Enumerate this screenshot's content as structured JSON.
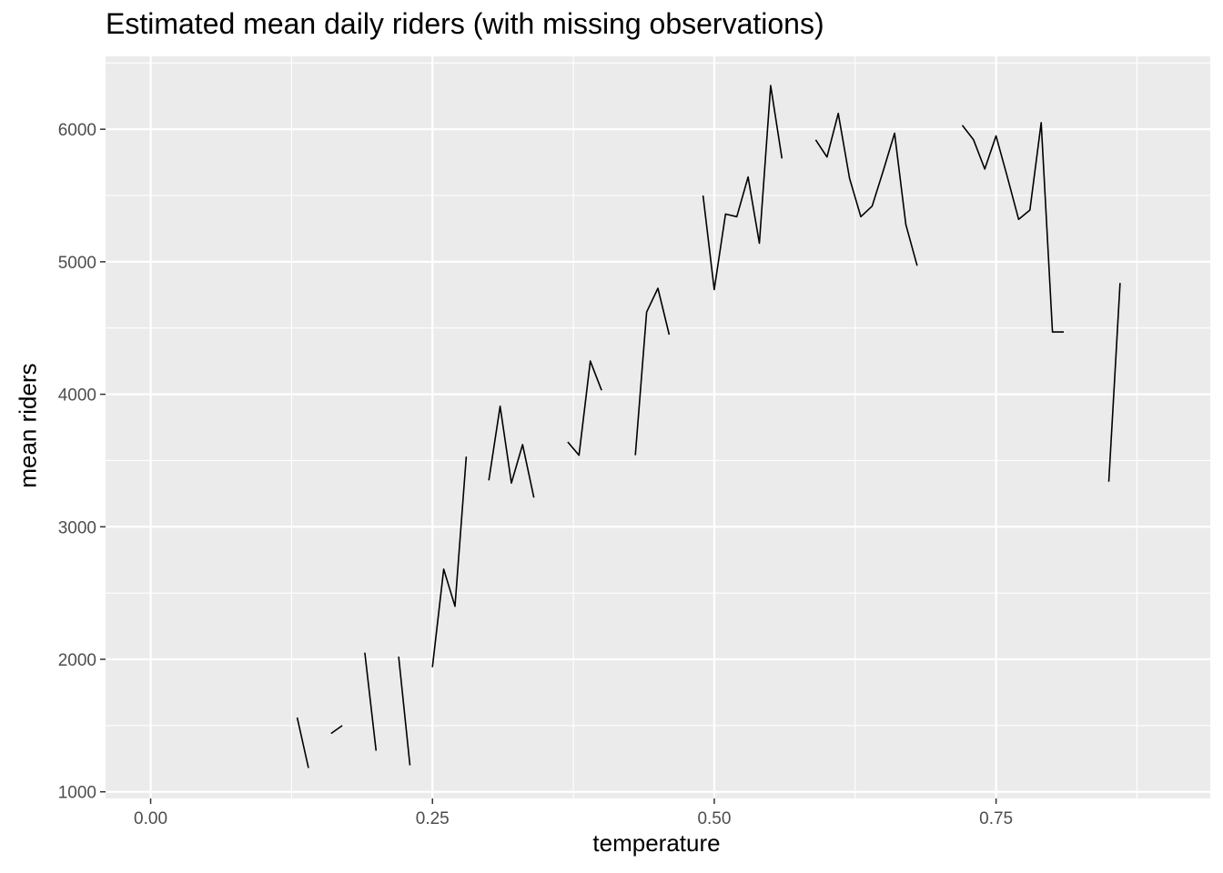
{
  "chart_data": {
    "type": "line",
    "title": "Estimated mean daily riders (with missing observations)",
    "xlabel": "temperature",
    "ylabel": "mean riders",
    "xlim": [
      -0.04,
      0.94
    ],
    "ylim": [
      950,
      6550
    ],
    "x_ticks": [
      0.0,
      0.25,
      0.5,
      0.75
    ],
    "x_tick_labels": [
      "0.00",
      "0.25",
      "0.50",
      "0.75"
    ],
    "x_minor_ticks": [
      0.125,
      0.375,
      0.625,
      0.875
    ],
    "y_ticks": [
      1000,
      2000,
      3000,
      4000,
      5000,
      6000
    ],
    "y_tick_labels": [
      "1000",
      "2000",
      "3000",
      "4000",
      "5000",
      "6000"
    ],
    "y_minor_ticks": [
      1500,
      2500,
      3500,
      4500,
      5500,
      6500
    ],
    "grid": true,
    "colors": {
      "panel": "#ebebeb",
      "grid": "#ffffff",
      "line": "#000000",
      "tick": "#4d4d4d"
    },
    "segments": [
      [
        [
          0.13,
          1560
        ],
        [
          0.14,
          1180
        ]
      ],
      [
        [
          0.16,
          1440
        ],
        [
          0.17,
          1500
        ]
      ],
      [
        [
          0.19,
          2050
        ],
        [
          0.2,
          1310
        ]
      ],
      [
        [
          0.22,
          2020
        ],
        [
          0.23,
          1200
        ]
      ],
      [
        [
          0.25,
          1940
        ],
        [
          0.26,
          2680
        ],
        [
          0.27,
          2400
        ],
        [
          0.28,
          3530
        ]
      ],
      [
        [
          0.3,
          3350
        ],
        [
          0.31,
          3910
        ],
        [
          0.32,
          3330
        ],
        [
          0.33,
          3620
        ],
        [
          0.34,
          3220
        ]
      ],
      [
        [
          0.37,
          3640
        ],
        [
          0.38,
          3540
        ],
        [
          0.39,
          4250
        ],
        [
          0.4,
          4030
        ]
      ],
      [
        [
          0.43,
          3540
        ],
        [
          0.44,
          4620
        ],
        [
          0.45,
          4800
        ],
        [
          0.46,
          4450
        ]
      ],
      [
        [
          0.49,
          5500
        ],
        [
          0.5,
          4790
        ],
        [
          0.51,
          5360
        ],
        [
          0.52,
          5340
        ],
        [
          0.53,
          5640
        ],
        [
          0.54,
          5140
        ],
        [
          0.55,
          6330
        ],
        [
          0.56,
          5780
        ]
      ],
      [
        [
          0.59,
          5920
        ],
        [
          0.6,
          5790
        ],
        [
          0.61,
          6120
        ],
        [
          0.62,
          5630
        ],
        [
          0.63,
          5340
        ],
        [
          0.64,
          5420
        ],
        [
          0.65,
          5690
        ],
        [
          0.66,
          5970
        ],
        [
          0.67,
          5280
        ],
        [
          0.68,
          4970
        ]
      ],
      [
        [
          0.72,
          6030
        ],
        [
          0.73,
          5920
        ],
        [
          0.74,
          5700
        ],
        [
          0.75,
          5950
        ],
        [
          0.76,
          5640
        ],
        [
          0.77,
          5320
        ],
        [
          0.78,
          5390
        ],
        [
          0.79,
          6050
        ],
        [
          0.8,
          4470
        ],
        [
          0.81,
          4470
        ]
      ],
      [
        [
          0.85,
          3340
        ],
        [
          0.86,
          4840
        ]
      ]
    ]
  }
}
